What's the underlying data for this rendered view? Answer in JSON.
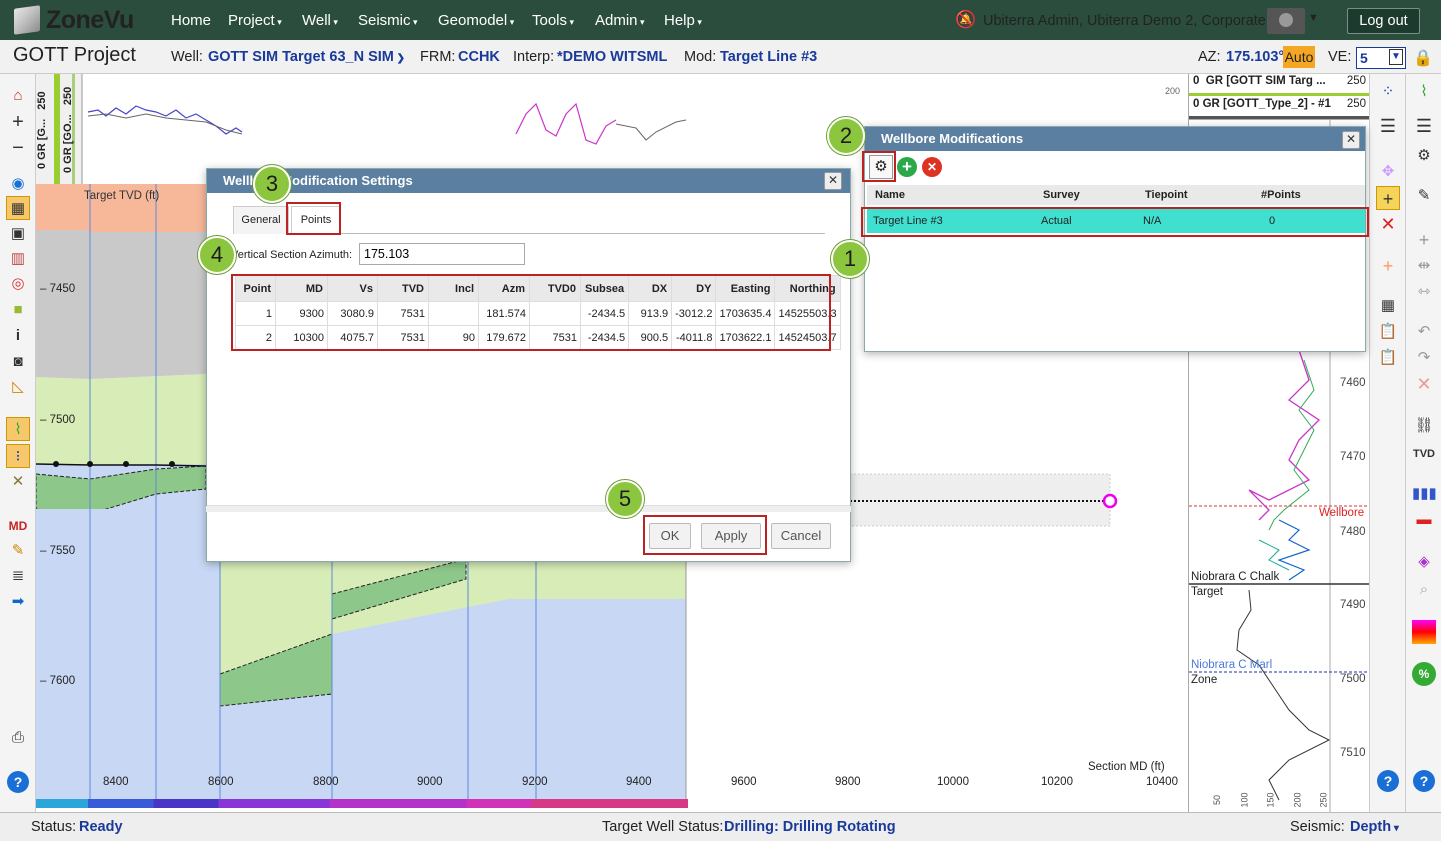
{
  "topnav": {
    "brand": "ZoneVu",
    "items": [
      "Home",
      "Project",
      "Well",
      "Seismic",
      "Geomodel",
      "Tools",
      "Admin",
      "Help"
    ],
    "user": "Ubiterra Admin, Ubiterra Demo 2, Corporate",
    "logout": "Log out"
  },
  "project": {
    "title": "GOTT Project",
    "well_label": "Well:",
    "well_value": "GOTT SIM Target 63_N SIM",
    "frm_label": "FRM:",
    "frm_value": "CCHK",
    "interp_label": "Interp:",
    "interp_value": "*DEMO WITSML",
    "mod_label": "Mod:",
    "mod_value": "Target Line #3",
    "az_label": "AZ:",
    "az_value": "175.103°",
    "auto": "Auto",
    "ve_label": "VE:",
    "ve_value": "5"
  },
  "log_header": {
    "track1_label": "GR [G...",
    "track1_min": "0",
    "track1_max": "250",
    "track2_label": "GR [GO...",
    "track2_min": "0",
    "track2_max": "250",
    "top_scale": "200"
  },
  "right_log_header": {
    "row1_min": "0",
    "row1_label": "GR [GOTT SIM Targ ...",
    "row1_max": "250",
    "row2_min": "0",
    "row2_label": "GR [GOTT_Type_2] - #1",
    "row2_max": "250"
  },
  "section": {
    "target_tvd_label": "Target TVD (ft)",
    "tvd_ticks": [
      "7450",
      "7500",
      "7550",
      "7600"
    ],
    "md_ticks": [
      "8400",
      "8600",
      "8800",
      "9000",
      "9200",
      "9400",
      "9600",
      "9800",
      "10000",
      "10200",
      "10400"
    ],
    "section_md_label": "Section MD (ft)"
  },
  "right_log": {
    "tvd_ticks": [
      "7460",
      "7470",
      "7480",
      "7490",
      "7500",
      "7510"
    ],
    "wellbore_label": "Wellbore",
    "formations": [
      "Niobrara C Chalk",
      "Target",
      "Niobrara C Marl",
      "Zone"
    ],
    "gr_ticks": [
      "50",
      "100",
      "150",
      "200",
      "250"
    ]
  },
  "wellbore_mods": {
    "title": "Wellbore Modifications",
    "columns": [
      "Name",
      "Survey",
      "Tiepoint",
      "#Points"
    ],
    "rows": [
      {
        "name": "Target Line #3",
        "survey": "Actual",
        "tiepoint": "N/A",
        "points": "0"
      }
    ]
  },
  "settings": {
    "title": "Wellbore Modification Settings",
    "tabs": [
      "General",
      "Points"
    ],
    "azimuth_label": "Vertical Section Azimuth:",
    "azimuth_value": "175.103",
    "columns": [
      "Point",
      "MD",
      "Vs",
      "TVD",
      "Incl",
      "Azm",
      "TVD0",
      "Subsea",
      "DX",
      "DY",
      "Easting",
      "Northing"
    ],
    "rows": [
      [
        "1",
        "9300",
        "3080.9",
        "7531",
        "",
        "181.574",
        "",
        "-2434.5",
        "913.9",
        "-3012.2",
        "1703635.4",
        "14525503.3"
      ],
      [
        "2",
        "10300",
        "4075.7",
        "7531",
        "90",
        "179.672",
        "7531",
        "-2434.5",
        "900.5",
        "-4011.8",
        "1703622.1",
        "14524503.7"
      ]
    ],
    "ok": "OK",
    "apply": "Apply",
    "cancel": "Cancel"
  },
  "callouts": [
    "1",
    "2",
    "3",
    "4",
    "5"
  ],
  "status": {
    "status_label": "Status:",
    "status_value": "Ready",
    "target_label": "Target Well Status:",
    "target_value": "Drilling: Drilling Rotating",
    "seismic_label": "Seismic:",
    "seismic_value": "Depth"
  }
}
